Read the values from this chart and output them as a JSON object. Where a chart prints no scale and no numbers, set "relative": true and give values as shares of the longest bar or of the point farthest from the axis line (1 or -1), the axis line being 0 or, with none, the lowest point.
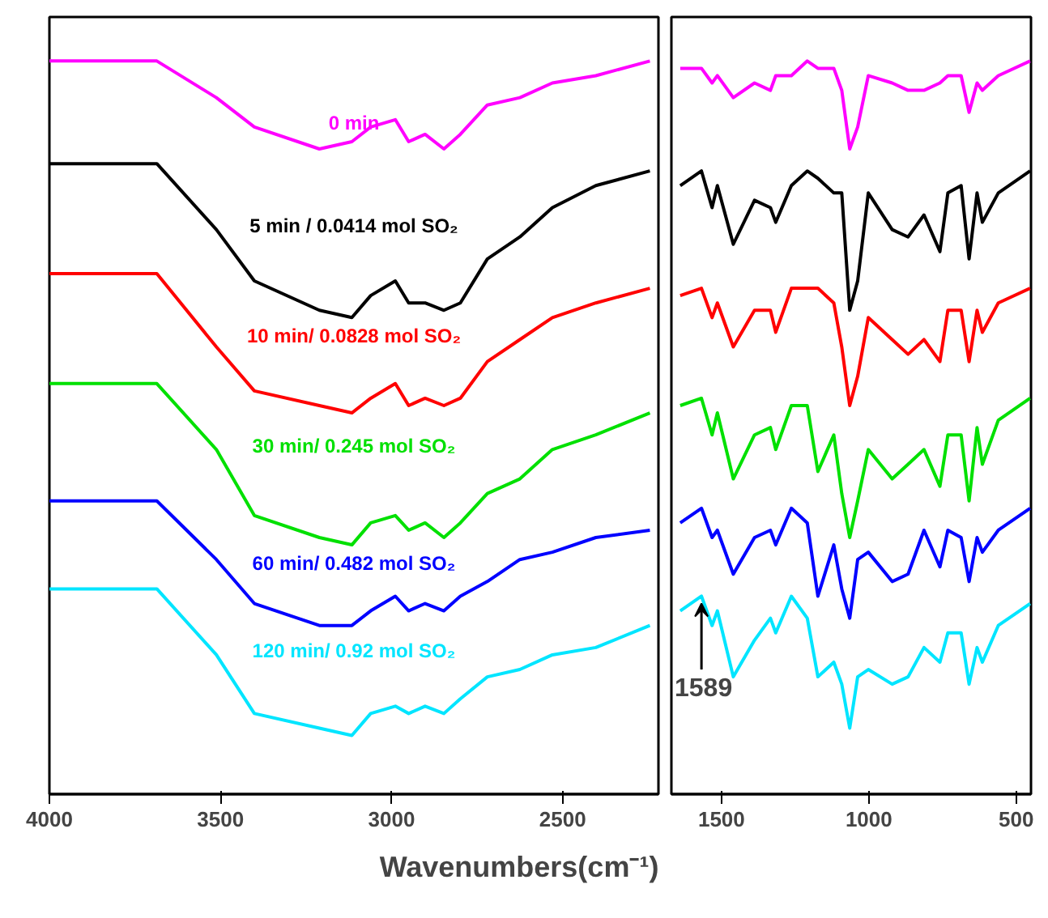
{
  "chart_data": [
    {
      "type": "line",
      "relative": true,
      "grid": false,
      "xlabel": "Wavenumbers(cm⁻¹)",
      "xlim": [
        4000,
        2220
      ],
      "xticks": [
        4000,
        3500,
        3000,
        2500
      ],
      "x": [
        4000,
        3686,
        3512,
        3401,
        3211,
        3116,
        3061,
        2989,
        2950,
        2902,
        2847,
        2799,
        2720,
        2625,
        2530,
        2403,
        2245
      ],
      "series": [
        {
          "name": "0 min",
          "color": "#ff00ff",
          "values": [
            1.0,
            1.0,
            0.95,
            0.91,
            0.88,
            0.89,
            0.91,
            0.92,
            0.89,
            0.9,
            0.88,
            0.9,
            0.94,
            0.95,
            0.97,
            0.98,
            1.0
          ]
        },
        {
          "name": "5 min / 0.0414 mol SO₂",
          "color": "#000000",
          "values": [
            0.86,
            0.86,
            0.77,
            0.7,
            0.66,
            0.65,
            0.68,
            0.7,
            0.67,
            0.67,
            0.66,
            0.67,
            0.73,
            0.76,
            0.8,
            0.83,
            0.85
          ]
        },
        {
          "name": "10 min/ 0.0828 mol SO₂",
          "color": "#ff0000",
          "values": [
            0.71,
            0.71,
            0.61,
            0.55,
            0.53,
            0.52,
            0.54,
            0.56,
            0.53,
            0.54,
            0.53,
            0.54,
            0.59,
            0.62,
            0.65,
            0.67,
            0.69
          ]
        },
        {
          "name": "30 min/ 0.245 mol SO₂",
          "color": "#00e000",
          "values": [
            0.56,
            0.56,
            0.47,
            0.38,
            0.35,
            0.34,
            0.37,
            0.38,
            0.36,
            0.37,
            0.35,
            0.37,
            0.41,
            0.43,
            0.47,
            0.49,
            0.52
          ]
        },
        {
          "name": "60 min/ 0.482 mol SO₂",
          "color": "#0000ff",
          "values": [
            0.4,
            0.4,
            0.32,
            0.26,
            0.23,
            0.23,
            0.25,
            0.27,
            0.25,
            0.26,
            0.25,
            0.27,
            0.29,
            0.32,
            0.33,
            0.35,
            0.36
          ]
        },
        {
          "name": "120 min/ 0.92 mol SO₂",
          "color": "#00e5ff",
          "values": [
            0.28,
            0.28,
            0.19,
            0.11,
            0.09,
            0.08,
            0.11,
            0.12,
            0.11,
            0.12,
            0.11,
            0.13,
            0.16,
            0.17,
            0.19,
            0.2,
            0.23
          ]
        }
      ]
    },
    {
      "type": "line",
      "relative": true,
      "grid": false,
      "xlim": [
        1670,
        450
      ],
      "xticks": [
        1500,
        1000,
        500
      ],
      "x": [
        1640,
        1568,
        1532,
        1514,
        1460,
        1388,
        1334,
        1316,
        1263,
        1209,
        1173,
        1119,
        1092,
        1065,
        1038,
        1002,
        921,
        867,
        813,
        759,
        732,
        687,
        660,
        633,
        615,
        561,
        453
      ],
      "series": [
        {
          "color": "#ff00ff",
          "values": [
            0.99,
            0.99,
            0.97,
            0.98,
            0.95,
            0.97,
            0.96,
            0.98,
            0.98,
            1.0,
            0.99,
            0.99,
            0.96,
            0.88,
            0.91,
            0.98,
            0.97,
            0.96,
            0.96,
            0.97,
            0.98,
            0.98,
            0.93,
            0.97,
            0.96,
            0.98,
            1.0
          ]
        },
        {
          "color": "#000000",
          "values": [
            0.83,
            0.85,
            0.8,
            0.83,
            0.75,
            0.81,
            0.8,
            0.78,
            0.83,
            0.85,
            0.84,
            0.82,
            0.82,
            0.66,
            0.7,
            0.82,
            0.77,
            0.76,
            0.79,
            0.74,
            0.82,
            0.83,
            0.73,
            0.82,
            0.78,
            0.82,
            0.85
          ]
        },
        {
          "color": "#ff0000",
          "values": [
            0.68,
            0.69,
            0.65,
            0.67,
            0.61,
            0.66,
            0.66,
            0.63,
            0.69,
            0.69,
            0.69,
            0.67,
            0.61,
            0.53,
            0.57,
            0.65,
            0.62,
            0.6,
            0.62,
            0.59,
            0.66,
            0.66,
            0.59,
            0.66,
            0.63,
            0.67,
            0.69
          ]
        },
        {
          "color": "#00e000",
          "values": [
            0.53,
            0.54,
            0.49,
            0.52,
            0.43,
            0.49,
            0.5,
            0.47,
            0.53,
            0.53,
            0.44,
            0.49,
            0.41,
            0.35,
            0.4,
            0.47,
            0.43,
            0.45,
            0.47,
            0.42,
            0.49,
            0.49,
            0.4,
            0.5,
            0.45,
            0.51,
            0.54
          ]
        },
        {
          "color": "#0000ff",
          "values": [
            0.37,
            0.39,
            0.35,
            0.36,
            0.3,
            0.35,
            0.36,
            0.34,
            0.39,
            0.37,
            0.27,
            0.34,
            0.28,
            0.24,
            0.32,
            0.33,
            0.29,
            0.3,
            0.36,
            0.31,
            0.36,
            0.35,
            0.29,
            0.35,
            0.33,
            0.36,
            0.39
          ]
        },
        {
          "color": "#00e5ff",
          "values": [
            0.25,
            0.27,
            0.23,
            0.25,
            0.16,
            0.21,
            0.24,
            0.22,
            0.27,
            0.24,
            0.16,
            0.18,
            0.15,
            0.09,
            0.16,
            0.17,
            0.15,
            0.16,
            0.2,
            0.18,
            0.22,
            0.22,
            0.15,
            0.2,
            0.18,
            0.23,
            0.26
          ]
        }
      ],
      "annotations": [
        "1589"
      ]
    }
  ]
}
